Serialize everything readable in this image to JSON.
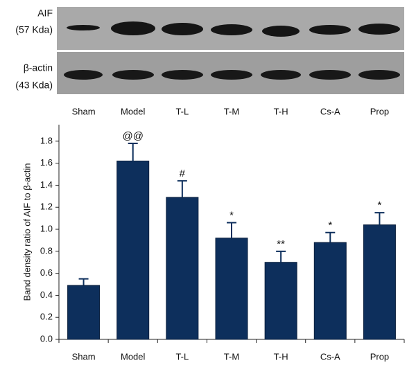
{
  "blot": {
    "rows": [
      {
        "name": "AIF",
        "size": "(57 Kda)"
      },
      {
        "name": "β-actin",
        "size": "(43 Kda)"
      }
    ]
  },
  "chart_data": {
    "type": "bar",
    "y_label": "Band density ratio of AIF to β-actin",
    "categories": [
      "Sham",
      "Model",
      "T-L",
      "T-M",
      "T-H",
      "Cs-A",
      "Prop"
    ],
    "values": [
      0.49,
      1.62,
      1.29,
      0.92,
      0.7,
      0.88,
      1.04
    ],
    "errors": [
      0.06,
      0.16,
      0.15,
      0.14,
      0.1,
      0.09,
      0.11
    ],
    "annotations": [
      null,
      "@@",
      "#",
      "*",
      "**",
      "*",
      "*"
    ],
    "color": "#0d2f5c",
    "ylim": [
      0,
      1.95
    ],
    "yticks": [
      {
        "value": 0,
        "label": "0.0"
      },
      0.2,
      0.4,
      0.6,
      0.8,
      {
        "value": 1,
        "label": "1.0"
      },
      1.2,
      1.4,
      1.6,
      1.8
    ]
  }
}
